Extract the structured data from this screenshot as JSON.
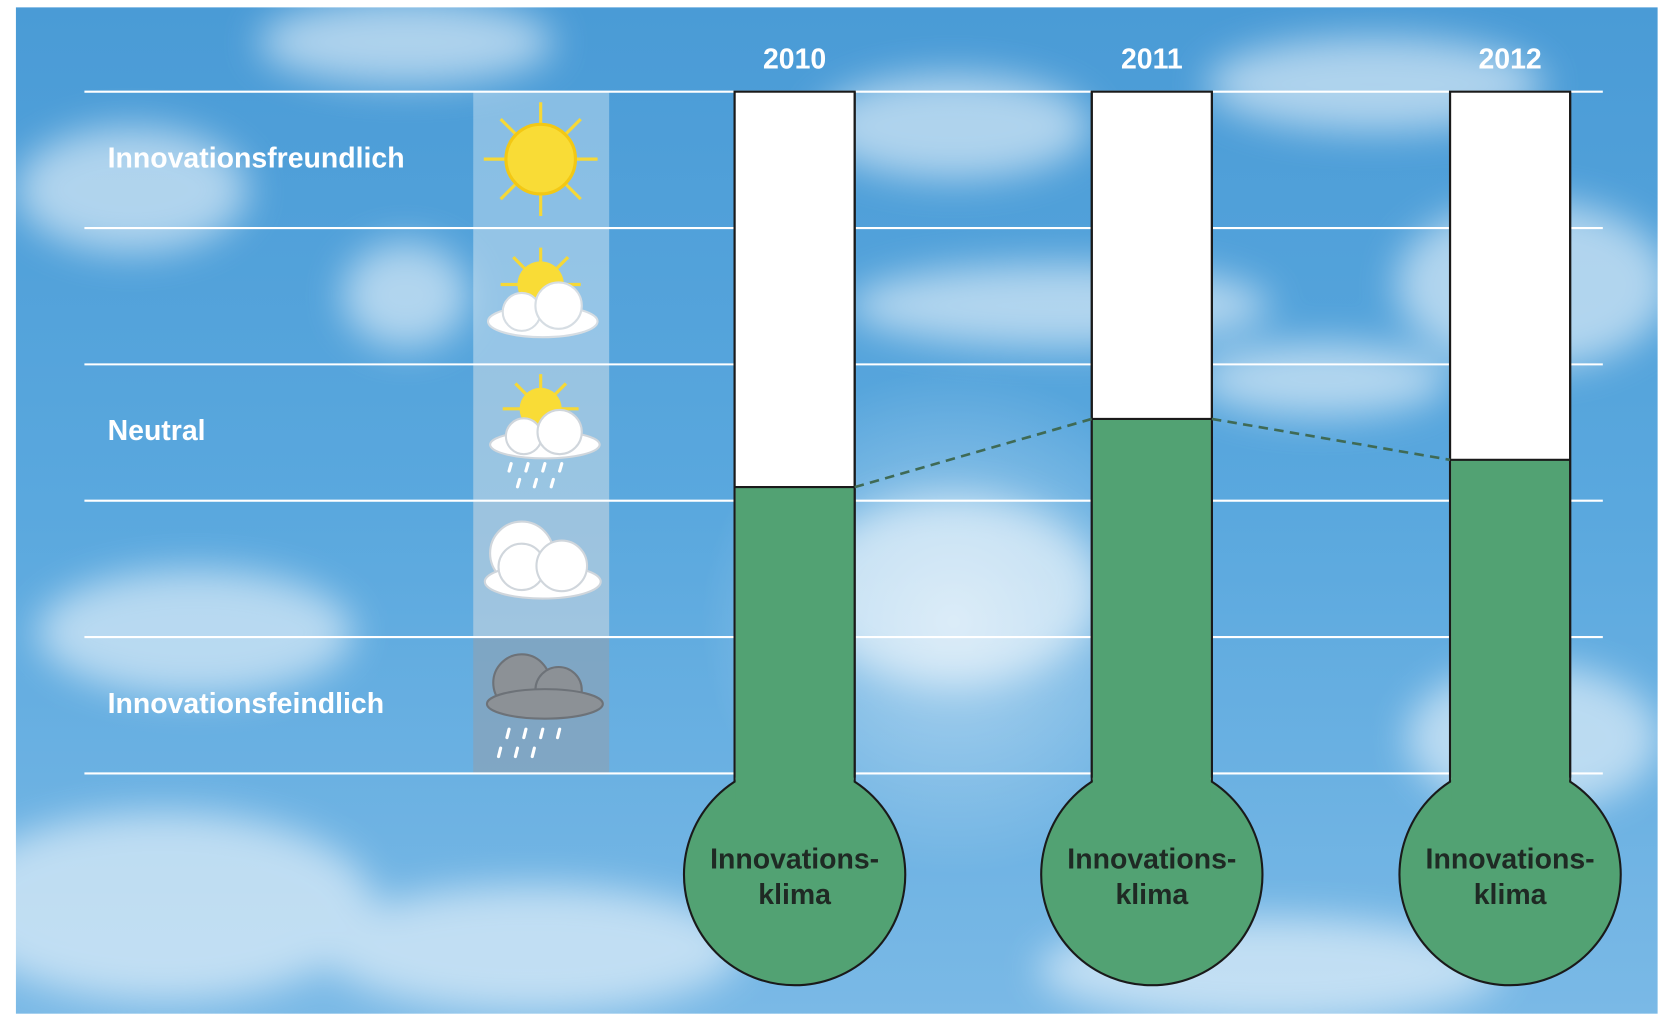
{
  "chart_data": {
    "type": "thermometer",
    "categories": [
      "2010",
      "2011",
      "2012"
    ],
    "values": [
      2.1,
      2.6,
      2.3
    ],
    "color": "#52a273",
    "ylim": [
      0,
      5
    ],
    "yticks": [
      {
        "value": 4.5,
        "label": "Innovationsfreundlich"
      },
      {
        "value": 2.5,
        "label": "Neutral"
      },
      {
        "value": 0.5,
        "label": "Innovationsfeindlich"
      }
    ],
    "grid": true,
    "bulb_label": [
      "Innovations-",
      "klima"
    ]
  }
}
